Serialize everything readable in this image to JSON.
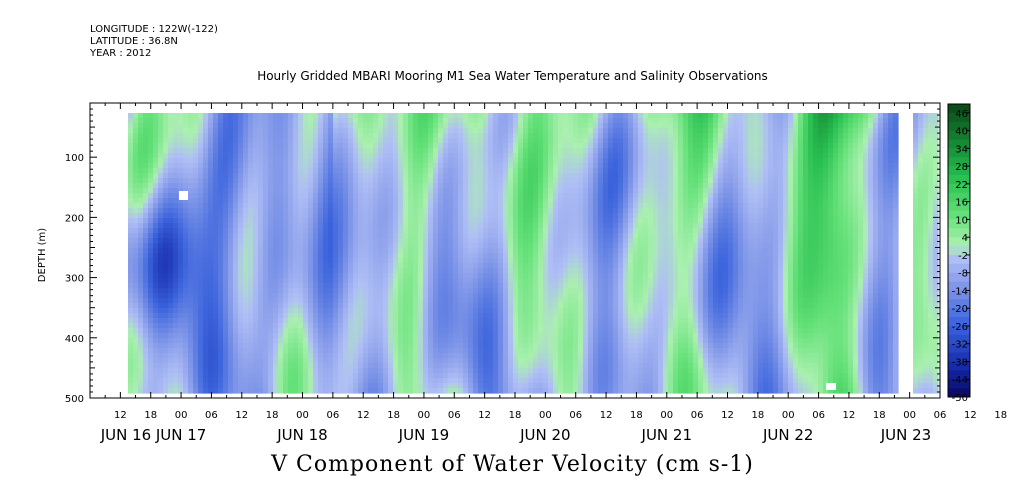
{
  "header": {
    "longitude": "LONGITUDE : 122W(-122)",
    "latitude": "LATITUDE : 36.8N",
    "year": "YEAR : 2012"
  },
  "chart_data": {
    "type": "heatmap",
    "title": "Hourly Gridded MBARI Mooring M1 Sea Water Temperature and Salinity Observations",
    "variable_label": "V Component of Water Velocity (cm s-1)",
    "ylabel": "DEPTH (m)",
    "y_axis": {
      "inverted": true,
      "ylim": [
        10,
        500
      ],
      "ticks": [
        100,
        200,
        300,
        400,
        500
      ]
    },
    "x_axis": {
      "hour_labels": [
        "12",
        "18",
        "00",
        "06",
        "12",
        "18",
        "00",
        "06",
        "12",
        "18",
        "00",
        "06",
        "12",
        "18",
        "00",
        "06",
        "12",
        "18",
        "00",
        "06",
        "12",
        "18",
        "00",
        "06",
        "12",
        "18",
        "00",
        "06",
        "12",
        "18",
        "00",
        "06"
      ],
      "date_labels": [
        "JUN 16",
        "JUN 17",
        "JUN 18",
        "JUN 19",
        "JUN 20",
        "JUN 21",
        "JUN 22",
        "JUN 23"
      ],
      "range_hours_from_jun16_00": [
        6,
        174
      ]
    },
    "colorbar": {
      "labels": [
        "46",
        "40",
        "34",
        "28",
        "22",
        "16",
        "10",
        "4",
        "-2",
        "-8",
        "-14",
        "-20",
        "-26",
        "-32",
        "-38",
        "-44",
        "-50"
      ],
      "range": [
        -50,
        49
      ]
    }
  }
}
